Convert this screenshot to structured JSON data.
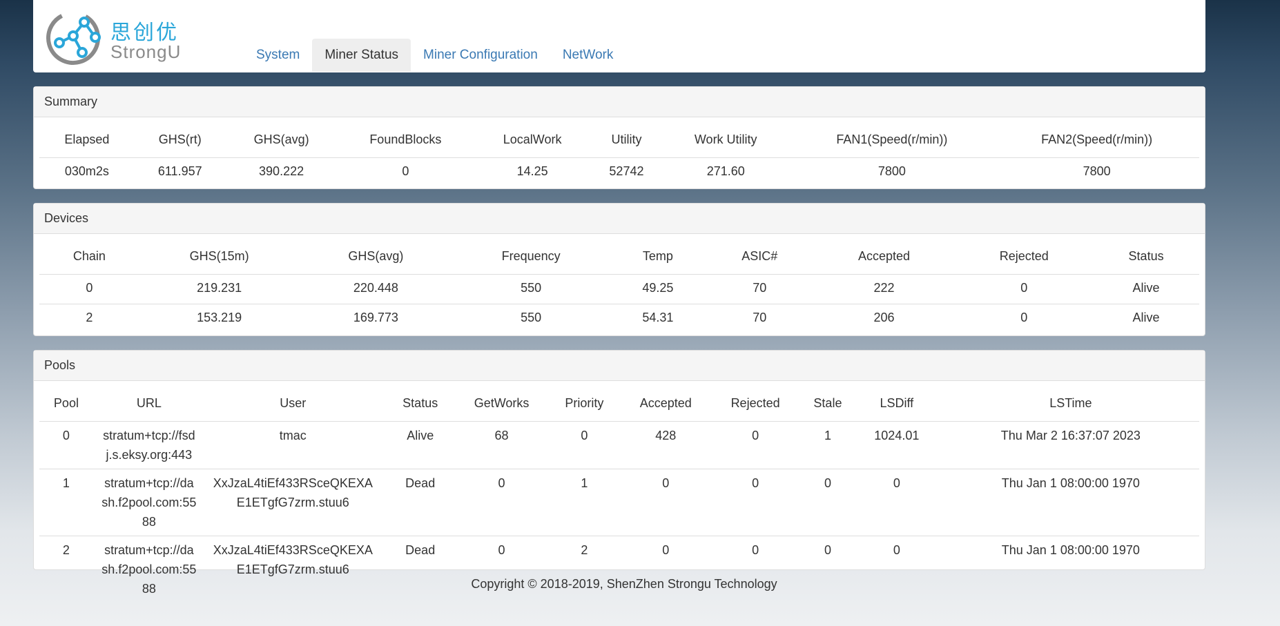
{
  "brand": {
    "name_cn": "思创优",
    "name_en": "StrongU",
    "logo_color": "#2aa6d9"
  },
  "nav": {
    "items": [
      {
        "label": "System",
        "active": false
      },
      {
        "label": "Miner Status",
        "active": true
      },
      {
        "label": "Miner Configuration",
        "active": false
      },
      {
        "label": "NetWork",
        "active": false
      }
    ]
  },
  "summary": {
    "title": "Summary",
    "headers": [
      "Elapsed",
      "GHS(rt)",
      "GHS(avg)",
      "FoundBlocks",
      "LocalWork",
      "Utility",
      "Work Utility",
      "FAN1(Speed(r/min))",
      "FAN2(Speed(r/min))"
    ],
    "row": [
      "030m2s",
      "611.957",
      "390.222",
      "0",
      "14.25",
      "52742",
      "271.60",
      "7800",
      "7800"
    ]
  },
  "devices": {
    "title": "Devices",
    "headers": [
      "Chain",
      "GHS(15m)",
      "GHS(avg)",
      "Frequency",
      "Temp",
      "ASIC#",
      "Accepted",
      "Rejected",
      "Status"
    ],
    "rows": [
      [
        "0",
        "219.231",
        "220.448",
        "550",
        "49.25",
        "70",
        "222",
        "0",
        "Alive"
      ],
      [
        "2",
        "153.219",
        "169.773",
        "550",
        "54.31",
        "70",
        "206",
        "0",
        "Alive"
      ]
    ]
  },
  "pools": {
    "title": "Pools",
    "headers": [
      "Pool",
      "URL",
      "User",
      "Status",
      "GetWorks",
      "Priority",
      "Accepted",
      "Rejected",
      "Stale",
      "LSDiff",
      "LSTime"
    ],
    "rows": [
      [
        "0",
        "stratum+tcp://fsdj.s.eksy.org:443",
        "tmac",
        "Alive",
        "68",
        "0",
        "428",
        "0",
        "1",
        "1024.01",
        "Thu Mar 2 16:37:07 2023"
      ],
      [
        "1",
        "stratum+tcp://dash.f2pool.com:5588",
        "XxJzaL4tiEf433RSceQKEXAE1ETgfG7zrm.stuu6",
        "Dead",
        "0",
        "1",
        "0",
        "0",
        "0",
        "0",
        "Thu Jan 1 08:00:00 1970"
      ],
      [
        "2",
        "stratum+tcp://dash.f2pool.com:5588",
        "XxJzaL4tiEf433RSceQKEXAE1ETgfG7zrm.stuu6",
        "Dead",
        "0",
        "2",
        "0",
        "0",
        "0",
        "0",
        "Thu Jan 1 08:00:00 1970"
      ]
    ]
  },
  "footer": {
    "copyright": "Copyright © 2018-2019, ShenZhen Strongu Technology"
  }
}
